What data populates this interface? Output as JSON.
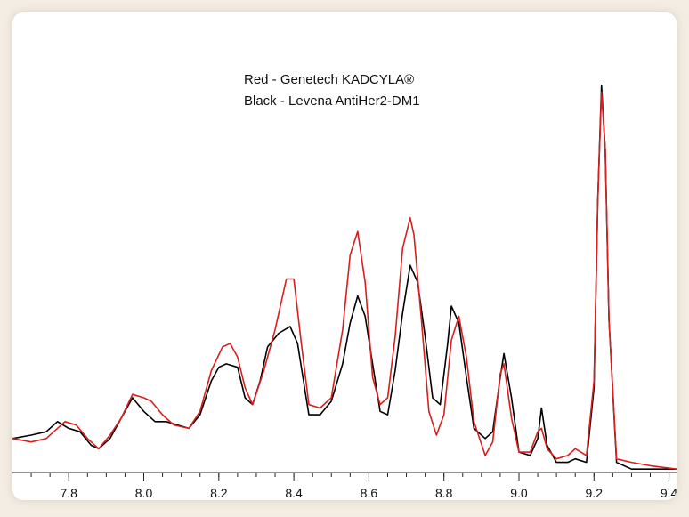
{
  "chart_data": {
    "type": "line",
    "title": "",
    "xlabel": "",
    "ylabel": "",
    "xlim": [
      7.65,
      9.42
    ],
    "ylim": [
      0,
      1.25
    ],
    "grid": false,
    "legend_text": [
      "Red - Genetech KADCYLA®",
      "Black - Levena AntiHer2-DM1"
    ],
    "x_ticks": [
      7.8,
      8.0,
      8.2,
      8.4,
      8.6,
      8.8,
      9.0,
      9.2,
      9.4
    ],
    "x_tick_labels": [
      "7.8",
      "8.0",
      "8.2",
      "8.4",
      "8.6",
      "8.8",
      "9.0",
      "9.2",
      "9.4"
    ],
    "series": [
      {
        "color": "#000000",
        "points": [
          [
            7.65,
            0.1
          ],
          [
            7.7,
            0.11
          ],
          [
            7.74,
            0.12
          ],
          [
            7.77,
            0.15
          ],
          [
            7.8,
            0.13
          ],
          [
            7.83,
            0.12
          ],
          [
            7.86,
            0.08
          ],
          [
            7.88,
            0.07
          ],
          [
            7.91,
            0.1
          ],
          [
            7.94,
            0.16
          ],
          [
            7.97,
            0.22
          ],
          [
            8.0,
            0.18
          ],
          [
            8.03,
            0.15
          ],
          [
            8.06,
            0.15
          ],
          [
            8.09,
            0.14
          ],
          [
            8.12,
            0.13
          ],
          [
            8.15,
            0.17
          ],
          [
            8.18,
            0.27
          ],
          [
            8.2,
            0.31
          ],
          [
            8.22,
            0.32
          ],
          [
            8.25,
            0.31
          ],
          [
            8.27,
            0.22
          ],
          [
            8.29,
            0.2
          ],
          [
            8.31,
            0.27
          ],
          [
            8.33,
            0.37
          ],
          [
            8.36,
            0.41
          ],
          [
            8.39,
            0.43
          ],
          [
            8.41,
            0.38
          ],
          [
            8.43,
            0.24
          ],
          [
            8.44,
            0.17
          ],
          [
            8.47,
            0.17
          ],
          [
            8.5,
            0.21
          ],
          [
            8.53,
            0.32
          ],
          [
            8.55,
            0.44
          ],
          [
            8.57,
            0.52
          ],
          [
            8.59,
            0.46
          ],
          [
            8.61,
            0.32
          ],
          [
            8.63,
            0.18
          ],
          [
            8.65,
            0.17
          ],
          [
            8.67,
            0.3
          ],
          [
            8.69,
            0.47
          ],
          [
            8.71,
            0.61
          ],
          [
            8.73,
            0.56
          ],
          [
            8.75,
            0.4
          ],
          [
            8.77,
            0.22
          ],
          [
            8.79,
            0.2
          ],
          [
            8.81,
            0.38
          ],
          [
            8.82,
            0.49
          ],
          [
            8.84,
            0.44
          ],
          [
            8.86,
            0.28
          ],
          [
            8.88,
            0.13
          ],
          [
            8.91,
            0.1
          ],
          [
            8.93,
            0.12
          ],
          [
            8.95,
            0.28
          ],
          [
            8.96,
            0.35
          ],
          [
            8.98,
            0.22
          ],
          [
            9.0,
            0.06
          ],
          [
            9.03,
            0.05
          ],
          [
            9.05,
            0.1
          ],
          [
            9.06,
            0.19
          ],
          [
            9.075,
            0.08
          ],
          [
            9.1,
            0.03
          ],
          [
            9.13,
            0.03
          ],
          [
            9.15,
            0.04
          ],
          [
            9.18,
            0.03
          ],
          [
            9.2,
            0.25
          ],
          [
            9.21,
            0.8
          ],
          [
            9.22,
            1.14
          ],
          [
            9.23,
            0.95
          ],
          [
            9.24,
            0.45
          ],
          [
            9.26,
            0.03
          ],
          [
            9.3,
            0.01
          ],
          [
            9.35,
            0.01
          ],
          [
            9.42,
            0.01
          ]
        ]
      },
      {
        "color": "#d81f1f",
        "points": [
          [
            7.65,
            0.1
          ],
          [
            7.7,
            0.09
          ],
          [
            7.74,
            0.1
          ],
          [
            7.76,
            0.12
          ],
          [
            7.79,
            0.15
          ],
          [
            7.82,
            0.14
          ],
          [
            7.85,
            0.1
          ],
          [
            7.88,
            0.07
          ],
          [
            7.91,
            0.11
          ],
          [
            7.94,
            0.16
          ],
          [
            7.97,
            0.23
          ],
          [
            8.0,
            0.22
          ],
          [
            8.02,
            0.21
          ],
          [
            8.05,
            0.17
          ],
          [
            8.08,
            0.14
          ],
          [
            8.12,
            0.13
          ],
          [
            8.15,
            0.18
          ],
          [
            8.18,
            0.3
          ],
          [
            8.21,
            0.37
          ],
          [
            8.23,
            0.38
          ],
          [
            8.25,
            0.34
          ],
          [
            8.27,
            0.25
          ],
          [
            8.29,
            0.2
          ],
          [
            8.32,
            0.3
          ],
          [
            8.35,
            0.42
          ],
          [
            8.38,
            0.57
          ],
          [
            8.4,
            0.57
          ],
          [
            8.42,
            0.38
          ],
          [
            8.44,
            0.2
          ],
          [
            8.47,
            0.19
          ],
          [
            8.5,
            0.22
          ],
          [
            8.53,
            0.42
          ],
          [
            8.55,
            0.64
          ],
          [
            8.57,
            0.71
          ],
          [
            8.59,
            0.56
          ],
          [
            8.61,
            0.28
          ],
          [
            8.63,
            0.2
          ],
          [
            8.65,
            0.22
          ],
          [
            8.67,
            0.4
          ],
          [
            8.69,
            0.66
          ],
          [
            8.71,
            0.75
          ],
          [
            8.72,
            0.7
          ],
          [
            8.74,
            0.45
          ],
          [
            8.76,
            0.18
          ],
          [
            8.78,
            0.11
          ],
          [
            8.8,
            0.17
          ],
          [
            8.82,
            0.39
          ],
          [
            8.84,
            0.46
          ],
          [
            8.86,
            0.34
          ],
          [
            8.88,
            0.15
          ],
          [
            8.91,
            0.05
          ],
          [
            8.93,
            0.09
          ],
          [
            8.95,
            0.29
          ],
          [
            8.96,
            0.32
          ],
          [
            8.98,
            0.16
          ],
          [
            9.0,
            0.06
          ],
          [
            9.03,
            0.06
          ],
          [
            9.05,
            0.12
          ],
          [
            9.06,
            0.13
          ],
          [
            9.075,
            0.07
          ],
          [
            9.1,
            0.04
          ],
          [
            9.13,
            0.05
          ],
          [
            9.15,
            0.07
          ],
          [
            9.18,
            0.05
          ],
          [
            9.2,
            0.27
          ],
          [
            9.21,
            0.8
          ],
          [
            9.22,
            1.12
          ],
          [
            9.23,
            0.95
          ],
          [
            9.24,
            0.45
          ],
          [
            9.26,
            0.04
          ],
          [
            9.3,
            0.03
          ],
          [
            9.35,
            0.02
          ],
          [
            9.42,
            0.01
          ]
        ]
      }
    ]
  }
}
